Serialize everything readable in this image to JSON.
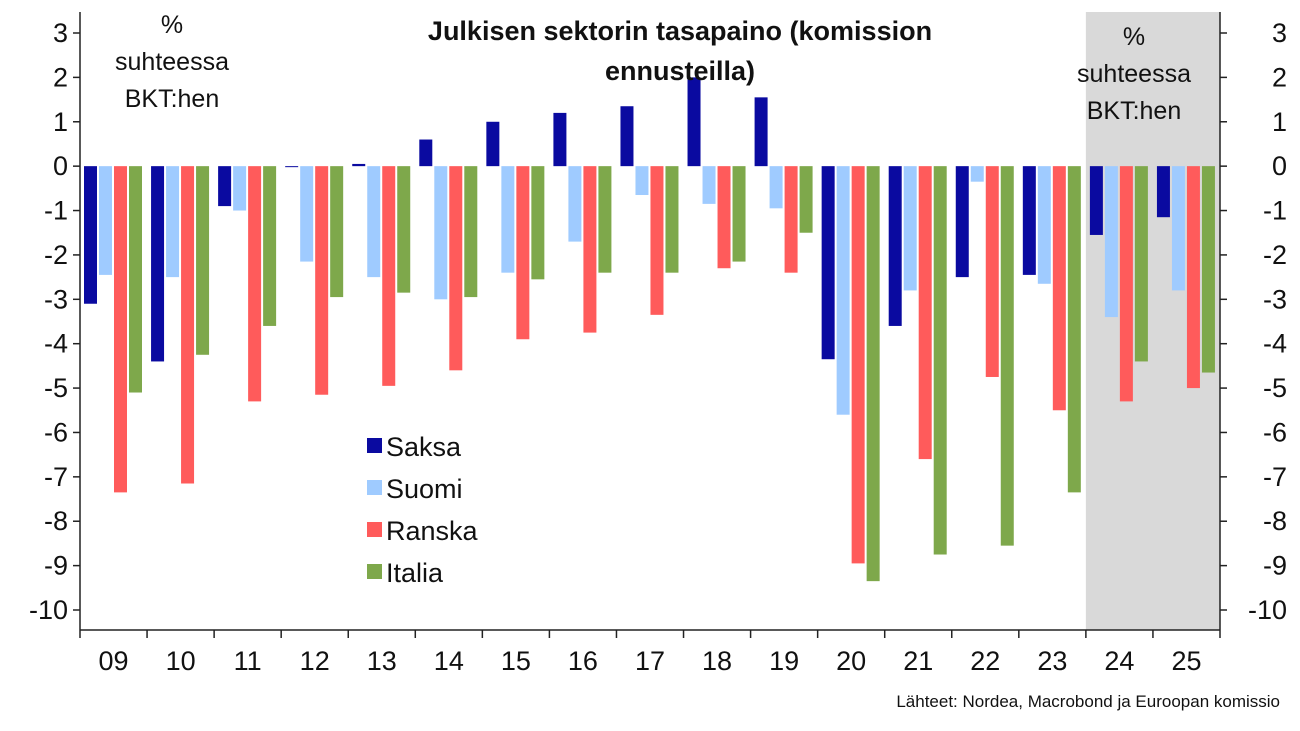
{
  "chart_data": {
    "type": "bar",
    "title_lines": [
      "Julkisen sektorin tasapaino (komission",
      "ennusteilla)"
    ],
    "unit_label_lines": [
      "%",
      "suhteessa",
      "BKT:hen"
    ],
    "categories": [
      "09",
      "10",
      "11",
      "12",
      "13",
      "14",
      "15",
      "16",
      "17",
      "18",
      "19",
      "20",
      "21",
      "22",
      "23",
      "24",
      "25"
    ],
    "series": [
      {
        "name": "Saksa",
        "color": "#0a0aa0",
        "values": [
          -3.1,
          -4.4,
          -0.9,
          0.0,
          0.05,
          0.6,
          1.0,
          1.2,
          1.35,
          2.0,
          1.55,
          -4.35,
          -3.6,
          -2.5,
          -2.45,
          -1.55,
          -1.15
        ]
      },
      {
        "name": "Suomi",
        "color": "#9fcbff",
        "values": [
          -2.45,
          -2.5,
          -1.0,
          -2.15,
          -2.5,
          -3.0,
          -2.4,
          -1.7,
          -0.65,
          -0.85,
          -0.95,
          -5.6,
          -2.8,
          -0.35,
          -2.65,
          -3.4,
          -2.8
        ]
      },
      {
        "name": "Ranska",
        "color": "#ff5b5b",
        "values": [
          -7.35,
          -7.15,
          -5.3,
          -5.15,
          -4.95,
          -4.6,
          -3.9,
          -3.75,
          -3.35,
          -2.3,
          -2.4,
          -8.95,
          -6.6,
          -4.75,
          -5.5,
          -5.3,
          -5.0
        ]
      },
      {
        "name": "Italia",
        "color": "#7ea84b",
        "values": [
          -5.1,
          -4.25,
          -3.6,
          -2.95,
          -2.85,
          -2.95,
          -2.55,
          -2.4,
          -2.4,
          -2.15,
          -1.5,
          -9.35,
          -8.75,
          -8.55,
          -7.35,
          -4.4,
          -4.65
        ]
      }
    ],
    "ylim": [
      -10,
      3
    ],
    "yticks": [
      3,
      2,
      1,
      0,
      -1,
      -2,
      -3,
      -4,
      -5,
      -6,
      -7,
      -8,
      -9,
      -10
    ],
    "forecast_categories": [
      "24",
      "25"
    ],
    "forecast_shade_color": "#d9d9d9",
    "legend_position": "center-left",
    "grid": false,
    "source": "Lähteet: Nordea, Macrobond ja Euroopan komissio"
  }
}
